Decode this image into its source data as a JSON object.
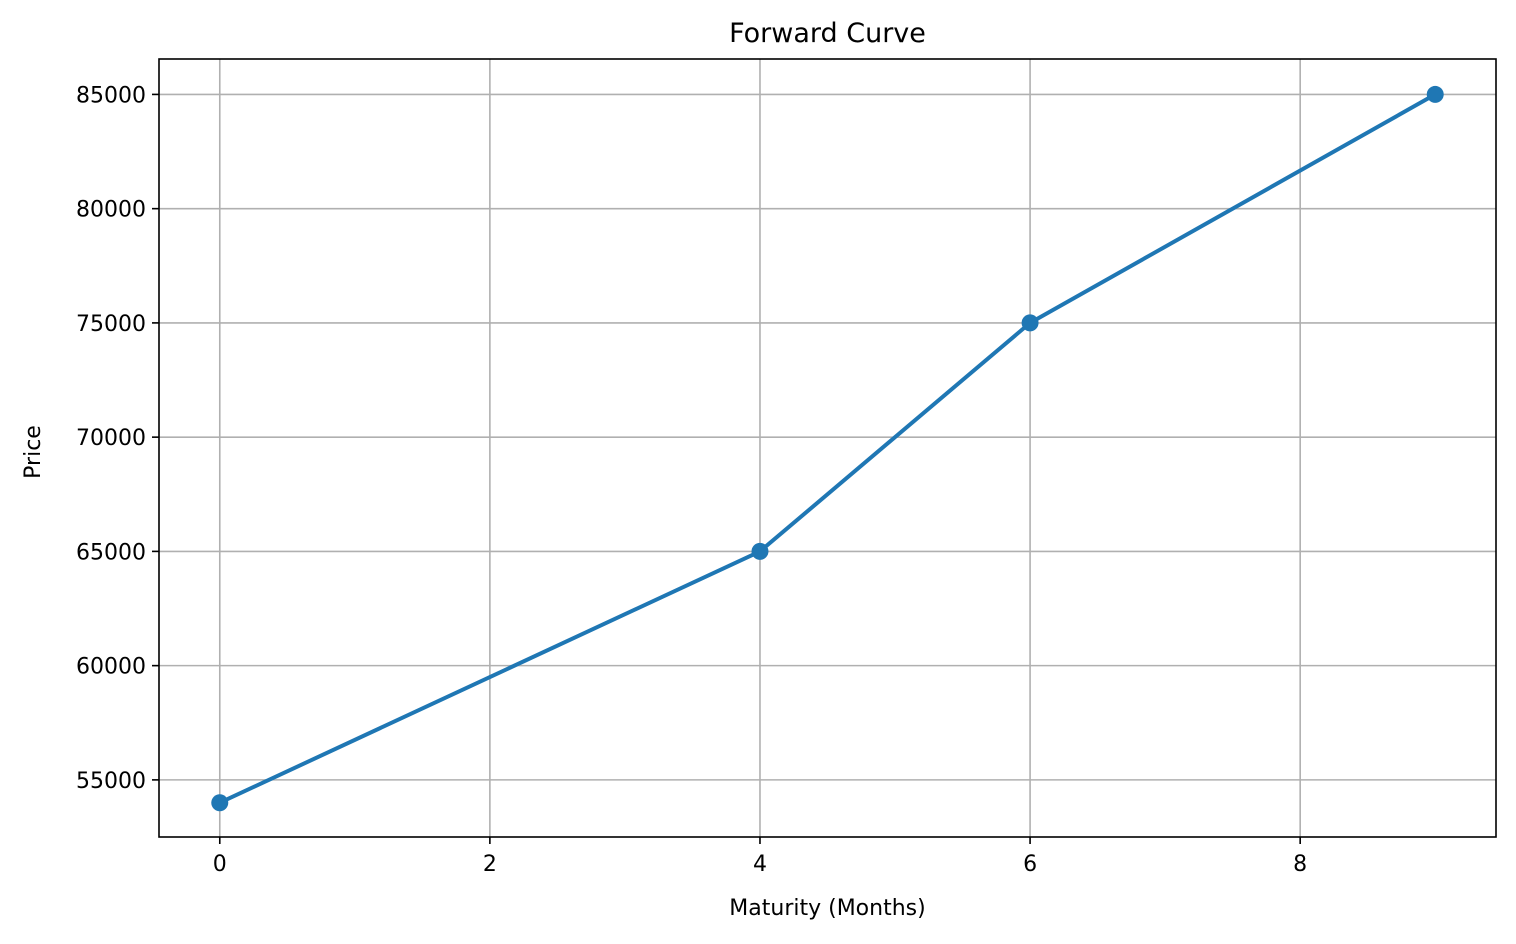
{
  "chart_data": {
    "type": "line",
    "title": "Forward Curve",
    "xlabel": "Maturity (Months)",
    "ylabel": "Price",
    "xlim": [
      -0.45,
      9.45
    ],
    "ylim": [
      52500,
      86550
    ],
    "xticks": [
      0,
      2,
      4,
      6,
      8
    ],
    "yticks": [
      55000,
      60000,
      65000,
      70000,
      75000,
      80000,
      85000
    ],
    "grid": true,
    "legend": "none",
    "series": [
      {
        "color": "#1f77b4",
        "marker": "circle",
        "x": [
          0,
          4,
          6,
          9
        ],
        "y": [
          54000,
          65000,
          75000,
          85000
        ]
      }
    ]
  }
}
